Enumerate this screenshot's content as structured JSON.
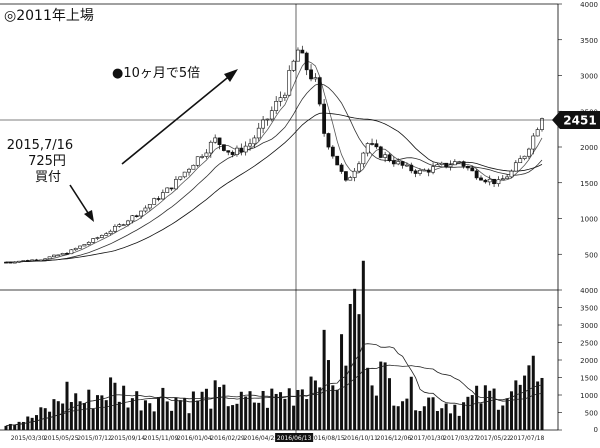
{
  "chart_data": [
    {
      "type": "candlestick",
      "title": "◎2011年上場",
      "ylim": [
        0,
        4000
      ],
      "y_ticks": [
        "4000",
        "3500",
        "3000",
        "2500",
        "2000",
        "1500",
        "1000",
        "500"
      ],
      "x_tick_labels": [
        "2015/03/30",
        "2015/05/25",
        "2015/07/12",
        "2015/09/14",
        "2015/11/09",
        "2016/01/04",
        "2016/02/29",
        "2016/04/25",
        "2016/06/13",
        "2016/08/15",
        "2016/10/11",
        "2016/12/06",
        "2017/01/30",
        "2017/03/27",
        "2017/05/22",
        "2017/07/18"
      ],
      "highlighted_date": "2016/06/13",
      "reference_price": 2451,
      "reference_label": "2451",
      "annotations": {
        "buy_line1": "2015,7/16",
        "buy_line2": "725円",
        "buy_line3": "買付",
        "gain": "●10ヶ月で5倍"
      },
      "price_waypoints": [
        {
          "i": 0,
          "p": 390
        },
        {
          "i": 8,
          "p": 430
        },
        {
          "i": 14,
          "p": 520
        },
        {
          "i": 20,
          "p": 700
        },
        {
          "i": 26,
          "p": 900
        },
        {
          "i": 32,
          "p": 1150
        },
        {
          "i": 38,
          "p": 1450
        },
        {
          "i": 44,
          "p": 1850
        },
        {
          "i": 48,
          "p": 2100
        },
        {
          "i": 52,
          "p": 1900
        },
        {
          "i": 56,
          "p": 2050
        },
        {
          "i": 60,
          "p": 2400
        },
        {
          "i": 64,
          "p": 2800
        },
        {
          "i": 67,
          "p": 3350
        },
        {
          "i": 69,
          "p": 3100
        },
        {
          "i": 71,
          "p": 2900
        },
        {
          "i": 73,
          "p": 2200
        },
        {
          "i": 75,
          "p": 1900
        },
        {
          "i": 78,
          "p": 1500
        },
        {
          "i": 80,
          "p": 1700
        },
        {
          "i": 83,
          "p": 2050
        },
        {
          "i": 86,
          "p": 1900
        },
        {
          "i": 89,
          "p": 1800
        },
        {
          "i": 92,
          "p": 1700
        },
        {
          "i": 95,
          "p": 1650
        },
        {
          "i": 98,
          "p": 1700
        },
        {
          "i": 101,
          "p": 1750
        },
        {
          "i": 104,
          "p": 1800
        },
        {
          "i": 107,
          "p": 1650
        },
        {
          "i": 110,
          "p": 1550
        },
        {
          "i": 113,
          "p": 1500
        },
        {
          "i": 116,
          "p": 1650
        },
        {
          "i": 119,
          "p": 1900
        },
        {
          "i": 121,
          "p": 2150
        },
        {
          "i": 123,
          "p": 2451
        }
      ],
      "ma_series": [
        {
          "window": 5,
          "style": "short"
        },
        {
          "window": 13,
          "style": "medium"
        },
        {
          "window": 26,
          "style": "long"
        }
      ]
    },
    {
      "type": "bar",
      "ylim": [
        0,
        4000
      ],
      "y_ticks": [
        "4000",
        "3500",
        "3000",
        "2500",
        "2000",
        "1500",
        "1000",
        "500",
        "0"
      ],
      "volume_waypoints": [
        {
          "i": 0,
          "v": 180
        },
        {
          "i": 5,
          "v": 300
        },
        {
          "i": 10,
          "v": 600
        },
        {
          "i": 14,
          "v": 1100
        },
        {
          "i": 18,
          "v": 800
        },
        {
          "i": 24,
          "v": 1200
        },
        {
          "i": 30,
          "v": 900
        },
        {
          "i": 36,
          "v": 1000
        },
        {
          "i": 42,
          "v": 850
        },
        {
          "i": 48,
          "v": 1000
        },
        {
          "i": 54,
          "v": 800
        },
        {
          "i": 60,
          "v": 900
        },
        {
          "i": 66,
          "v": 1100
        },
        {
          "i": 70,
          "v": 1500
        },
        {
          "i": 72,
          "v": 2200
        },
        {
          "i": 74,
          "v": 1800
        },
        {
          "i": 76,
          "v": 1500
        },
        {
          "i": 78,
          "v": 2400
        },
        {
          "i": 80,
          "v": 3600
        },
        {
          "i": 82,
          "v": 3700
        },
        {
          "i": 84,
          "v": 1900
        },
        {
          "i": 88,
          "v": 1300
        },
        {
          "i": 92,
          "v": 1100
        },
        {
          "i": 96,
          "v": 900
        },
        {
          "i": 100,
          "v": 800
        },
        {
          "i": 104,
          "v": 700
        },
        {
          "i": 108,
          "v": 900
        },
        {
          "i": 112,
          "v": 1000
        },
        {
          "i": 116,
          "v": 1100
        },
        {
          "i": 120,
          "v": 1300
        },
        {
          "i": 123,
          "v": 2100
        }
      ],
      "avg_series": [
        {
          "window": 13
        },
        {
          "window": 26
        }
      ]
    }
  ]
}
